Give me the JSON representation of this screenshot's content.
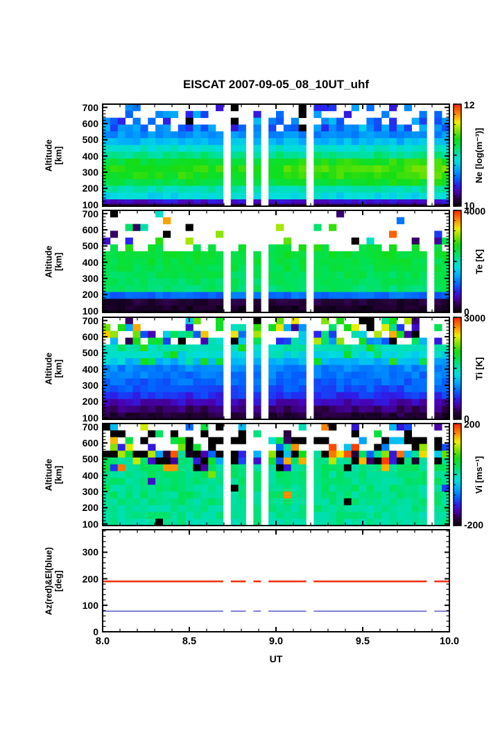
{
  "title": "EISCAT 2007-09-05_08_10UT_uhf",
  "x_axis": {
    "label": "UT",
    "min": 8.0,
    "max": 10.0,
    "ticks": [
      "8.0",
      "8.5",
      "9.0",
      "9.5",
      "10.0"
    ],
    "minor_step": 0.1
  },
  "sampling": {
    "n_time_columns": 46,
    "n_altitude_rows": 15,
    "gap_columns": [
      16,
      19,
      21,
      27,
      43
    ],
    "gap_ut_approx": [
      8.72,
      8.85,
      8.93,
      9.19,
      9.89
    ]
  },
  "colormap_stops": [
    [
      0.0,
      "#08000f"
    ],
    [
      0.07,
      "#2b0040"
    ],
    [
      0.14,
      "#4a00b0"
    ],
    [
      0.21,
      "#2a22ee"
    ],
    [
      0.28,
      "#0066ff"
    ],
    [
      0.36,
      "#00a8ff"
    ],
    [
      0.44,
      "#00dede"
    ],
    [
      0.52,
      "#00e0a0"
    ],
    [
      0.58,
      "#00e257"
    ],
    [
      0.66,
      "#14dd14"
    ],
    [
      0.74,
      "#7fe300"
    ],
    [
      0.82,
      "#eded00"
    ],
    [
      0.9,
      "#ff9000"
    ],
    [
      1.0,
      "#ff2200"
    ]
  ],
  "chart_data": [
    {
      "id": "ne",
      "type": "heatmap",
      "ylabel_lines": [
        "Altitude",
        "[km]"
      ],
      "ylim": [
        90,
        720
      ],
      "yticks": [
        700,
        600,
        500,
        400,
        300,
        200,
        100
      ],
      "colorbar": {
        "label": "Ne [log(m⁻³)]",
        "max_label": "12",
        "min_label": "10",
        "min": 10,
        "max": 12
      },
      "profile": [
        [
          95,
          10.15
        ],
        [
          120,
          10.45
        ],
        [
          155,
          10.9
        ],
        [
          200,
          11.02
        ],
        [
          250,
          11.25
        ],
        [
          300,
          11.33
        ],
        [
          350,
          11.3
        ],
        [
          400,
          11.1
        ],
        [
          450,
          10.92
        ],
        [
          500,
          10.72
        ],
        [
          550,
          10.62
        ],
        [
          720,
          10.55
        ]
      ],
      "gen": {
        "seed": 11,
        "noise": 0.035,
        "trend": {
          "alt_min": 230,
          "alt_max": 380,
          "amp": 0.05
        },
        "sparse": {
          "alt0": 545,
          "p0": 0.85,
          "p1": 0.33,
          "mode": "profile",
          "spread": 0.09,
          "black": 0.05
        },
        "bottom_strip": 0.07
      }
    },
    {
      "id": "te",
      "type": "heatmap",
      "ylabel_lines": [
        "Altitude",
        "[km]"
      ],
      "ylim": [
        90,
        720
      ],
      "yticks": [
        700,
        600,
        500,
        400,
        300,
        200,
        100
      ],
      "colorbar": {
        "label": "Te [K]",
        "max_label": "4000",
        "min_label": "0",
        "min": 0,
        "max": 4000
      },
      "profile": [
        [
          95,
          100
        ],
        [
          150,
          180
        ],
        [
          180,
          420
        ],
        [
          195,
          1150
        ],
        [
          210,
          1750
        ],
        [
          230,
          2250
        ],
        [
          320,
          2350
        ],
        [
          470,
          2500
        ],
        [
          720,
          2500
        ]
      ],
      "gen": {
        "seed": 22,
        "noise": 0.03,
        "zones": [
          {
            "alt0": 466,
            "alt1": 505,
            "p": 0.45,
            "mode": "profile",
            "spread": 0.05
          },
          {
            "alt0": 505,
            "alt1": 720,
            "p0": 0.25,
            "p1": 0.05,
            "curve": 2,
            "mode": "uniform",
            "u_min": 0.05,
            "u_max": 0.97,
            "black": 0.08
          }
        ],
        "bottom_strip": 0.02
      }
    },
    {
      "id": "ti",
      "type": "heatmap",
      "ylabel_lines": [
        "Altitude",
        "[km]"
      ],
      "ylim": [
        90,
        720
      ],
      "yticks": [
        700,
        600,
        500,
        400,
        300,
        200,
        100
      ],
      "colorbar": {
        "label": "Ti [K]",
        "max_label": "3000",
        "min_label": "0",
        "min": 0,
        "max": 3000
      },
      "profile": [
        [
          95,
          140
        ],
        [
          150,
          260
        ],
        [
          200,
          480
        ],
        [
          250,
          720
        ],
        [
          330,
          860
        ],
        [
          420,
          980
        ],
        [
          470,
          1250
        ],
        [
          520,
          1450
        ],
        [
          560,
          1600
        ],
        [
          720,
          1700
        ]
      ],
      "gen": {
        "seed": 33,
        "noise": 0.035,
        "speckle": {
          "alt0": 425,
          "alt1": 560,
          "p": 0.13,
          "t0": 0.56,
          "spread": 0.12
        },
        "sparse": {
          "alt0": 552,
          "p0": 0.8,
          "p1": 0.35,
          "mode": "uniform",
          "u_min": 0.04,
          "u_max": 0.88,
          "black": 0.08
        },
        "bottom_strip": 0.05
      }
    },
    {
      "id": "vi",
      "type": "heatmap",
      "ylabel_lines": [
        "Altitude",
        "[km]"
      ],
      "ylim": [
        90,
        720
      ],
      "yticks": [
        700,
        600,
        500,
        400,
        300,
        200,
        100
      ],
      "colorbar": {
        "label": "Vi [ms⁻¹]",
        "max_label": "200",
        "min_label": "-200",
        "min": -200,
        "max": 200
      },
      "profile": [
        [
          95,
          8
        ],
        [
          300,
          18
        ],
        [
          720,
          20
        ]
      ],
      "gen": {
        "seed": 44,
        "noise": 0.04,
        "wild": [
          [
            415,
            0.03
          ],
          [
            455,
            0.3
          ],
          [
            495,
            0.6
          ],
          [
            535,
            0.88
          ],
          [
            562,
            0.92
          ]
        ],
        "wild_black": 0.3,
        "sparse": {
          "alt0": 562,
          "p0": 0.62,
          "p1": 0.25,
          "mode": "uniform",
          "u_min": 0.02,
          "u_max": 0.98,
          "black": 0.38
        }
      }
    },
    {
      "id": "azel",
      "type": "line",
      "ylabel_lines": [
        "Az(red)&El(blue)",
        "[deg]"
      ],
      "ylim": [
        0,
        385
      ],
      "yticks": [
        300,
        200,
        100,
        0
      ],
      "series": [
        {
          "name": "Az",
          "color": "#ee2200",
          "value": 190,
          "width": 2.4
        },
        {
          "name": "El",
          "color": "#3b3bbb",
          "value": 78,
          "width": 1.3
        }
      ]
    }
  ]
}
